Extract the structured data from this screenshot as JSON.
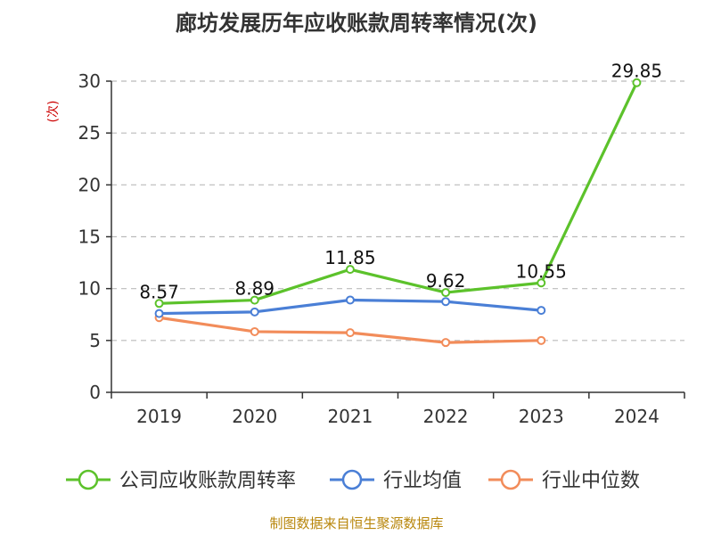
{
  "chart_data": {
    "type": "line",
    "title": "廊坊发展历年应收账款周转率情况(次)",
    "ylabel": "(次)",
    "xlabel": "",
    "categories": [
      "2019",
      "2020",
      "2021",
      "2022",
      "2023",
      "2024"
    ],
    "ylim": [
      0,
      30
    ],
    "yticks": [
      0,
      5,
      10,
      15,
      20,
      25,
      30
    ],
    "grid": true,
    "legend_position": "bottom",
    "series": [
      {
        "name": "公司应收账款周转率",
        "color": "#5cc22b",
        "values": [
          8.57,
          8.89,
          11.85,
          9.62,
          10.55,
          29.85
        ],
        "labels": [
          "8.57",
          "8.89",
          "11.85",
          "9.62",
          "10.55",
          "29.85"
        ]
      },
      {
        "name": "行业均值",
        "color": "#4a7fd6",
        "values": [
          7.6,
          7.75,
          8.9,
          8.75,
          7.9,
          null
        ]
      },
      {
        "name": "行业中位数",
        "color": "#f28c5a",
        "values": [
          7.2,
          5.85,
          5.75,
          4.8,
          5.0,
          null
        ]
      }
    ],
    "source": "制图数据来自恒生聚源数据库"
  }
}
